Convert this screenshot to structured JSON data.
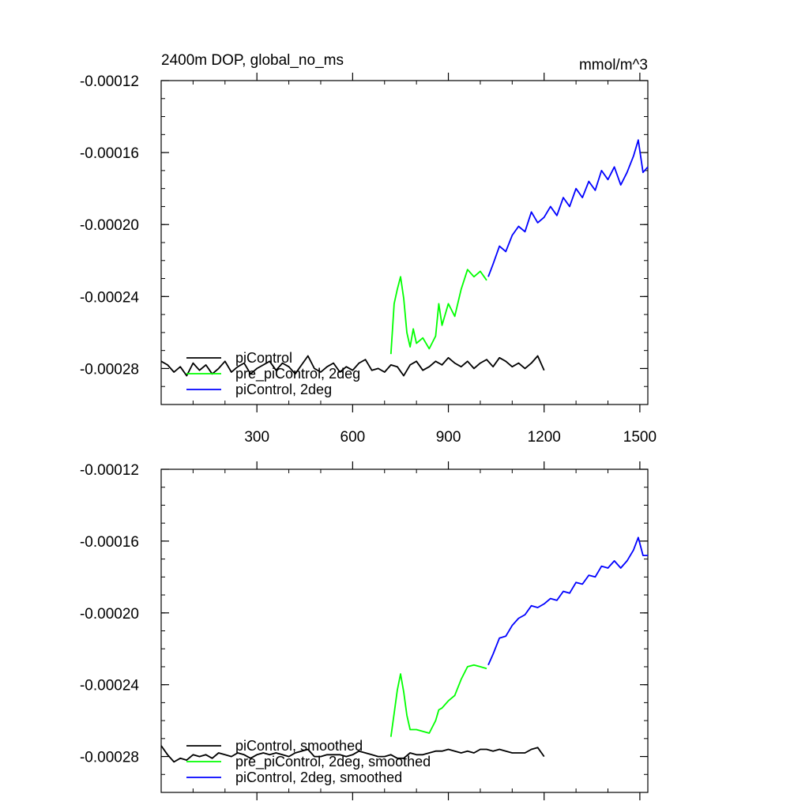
{
  "figure": {
    "title_left": "2400m DOP, global_no_ms",
    "title_right": "mmol/m^3"
  },
  "chart_data": [
    {
      "type": "line",
      "title": "2400m DOP, global_no_ms",
      "units": "mmol/m^3",
      "xlim": [
        0,
        1525
      ],
      "ylim": [
        -0.0003,
        -0.00012
      ],
      "xticks": [
        300,
        600,
        900,
        1200,
        1500
      ],
      "xtick_labels": [
        "300",
        "600",
        "900",
        "1200",
        "1500"
      ],
      "yticks": [
        -0.00028,
        -0.00024,
        -0.0002,
        -0.00016,
        -0.00012
      ],
      "ytick_labels": [
        "-0.00028",
        "-0.00024",
        "-0.00020",
        "-0.00016",
        "-0.00012"
      ],
      "grid": false,
      "legend_position": "lower-left",
      "series": [
        {
          "name": "piControl",
          "color": "#000000",
          "points": [
            [
              0,
              -0.000276
            ],
            [
              20,
              -0.000278
            ],
            [
              40,
              -0.000282
            ],
            [
              60,
              -0.000279
            ],
            [
              80,
              -0.000284
            ],
            [
              100,
              -0.000277
            ],
            [
              120,
              -0.000281
            ],
            [
              140,
              -0.000278
            ],
            [
              160,
              -0.000283
            ],
            [
              180,
              -0.00028
            ],
            [
              200,
              -0.000276
            ],
            [
              220,
              -0.000282
            ],
            [
              240,
              -0.000279
            ],
            [
              260,
              -0.000277
            ],
            [
              280,
              -0.000283
            ],
            [
              300,
              -0.00028
            ],
            [
              320,
              -0.000278
            ],
            [
              340,
              -0.000276
            ],
            [
              360,
              -0.000281
            ],
            [
              380,
              -0.000277
            ],
            [
              400,
              -0.000279
            ],
            [
              420,
              -0.000283
            ],
            [
              440,
              -0.000278
            ],
            [
              460,
              -0.000273
            ],
            [
              480,
              -0.00028
            ],
            [
              500,
              -0.000282
            ],
            [
              520,
              -0.000279
            ],
            [
              540,
              -0.000277
            ],
            [
              560,
              -0.000282
            ],
            [
              580,
              -0.000279
            ],
            [
              600,
              -0.000281
            ],
            [
              620,
              -0.000277
            ],
            [
              640,
              -0.000275
            ],
            [
              660,
              -0.000281
            ],
            [
              680,
              -0.00028
            ],
            [
              700,
              -0.000282
            ],
            [
              720,
              -0.000278
            ],
            [
              740,
              -0.000279
            ],
            [
              760,
              -0.000284
            ],
            [
              780,
              -0.000278
            ],
            [
              800,
              -0.000276
            ],
            [
              820,
              -0.000281
            ],
            [
              840,
              -0.000279
            ],
            [
              860,
              -0.000276
            ],
            [
              880,
              -0.000278
            ],
            [
              900,
              -0.000274
            ],
            [
              920,
              -0.000277
            ],
            [
              940,
              -0.000279
            ],
            [
              960,
              -0.000276
            ],
            [
              980,
              -0.00028
            ],
            [
              1000,
              -0.000277
            ],
            [
              1020,
              -0.000275
            ],
            [
              1040,
              -0.000279
            ],
            [
              1060,
              -0.000274
            ],
            [
              1080,
              -0.000276
            ],
            [
              1100,
              -0.000279
            ],
            [
              1120,
              -0.000277
            ],
            [
              1140,
              -0.00028
            ],
            [
              1160,
              -0.000277
            ],
            [
              1180,
              -0.000273
            ],
            [
              1200,
              -0.000281
            ]
          ]
        },
        {
          "name": "pre_piControl, 2deg",
          "color": "#00ff00",
          "points": [
            [
              720,
              -0.000272
            ],
            [
              730,
              -0.000244
            ],
            [
              740,
              -0.000236
            ],
            [
              750,
              -0.000229
            ],
            [
              760,
              -0.000241
            ],
            [
              770,
              -0.00026
            ],
            [
              780,
              -0.000268
            ],
            [
              790,
              -0.000258
            ],
            [
              800,
              -0.000266
            ],
            [
              820,
              -0.000263
            ],
            [
              840,
              -0.000269
            ],
            [
              860,
              -0.000262
            ],
            [
              870,
              -0.000244
            ],
            [
              880,
              -0.000256
            ],
            [
              900,
              -0.000244
            ],
            [
              920,
              -0.000251
            ],
            [
              940,
              -0.000236
            ],
            [
              960,
              -0.000225
            ],
            [
              980,
              -0.000229
            ],
            [
              1000,
              -0.000226
            ],
            [
              1020,
              -0.000231
            ]
          ]
        },
        {
          "name": "piControl, 2deg",
          "color": "#0000ff",
          "points": [
            [
              1025,
              -0.000229
            ],
            [
              1040,
              -0.000222
            ],
            [
              1060,
              -0.000212
            ],
            [
              1080,
              -0.000215
            ],
            [
              1100,
              -0.000206
            ],
            [
              1120,
              -0.000201
            ],
            [
              1140,
              -0.000204
            ],
            [
              1160,
              -0.000193
            ],
            [
              1180,
              -0.000199
            ],
            [
              1200,
              -0.000196
            ],
            [
              1220,
              -0.00019
            ],
            [
              1240,
              -0.000195
            ],
            [
              1260,
              -0.000185
            ],
            [
              1280,
              -0.00019
            ],
            [
              1300,
              -0.00018
            ],
            [
              1320,
              -0.000185
            ],
            [
              1340,
              -0.000176
            ],
            [
              1360,
              -0.000181
            ],
            [
              1380,
              -0.00017
            ],
            [
              1400,
              -0.000175
            ],
            [
              1420,
              -0.000168
            ],
            [
              1440,
              -0.000178
            ],
            [
              1460,
              -0.000171
            ],
            [
              1480,
              -0.000162
            ],
            [
              1495,
              -0.000153
            ],
            [
              1510,
              -0.000171
            ],
            [
              1525,
              -0.000168
            ]
          ]
        }
      ]
    },
    {
      "type": "line",
      "xlim": [
        0,
        1525
      ],
      "ylim": [
        -0.0003,
        -0.00012
      ],
      "xticks": [
        300,
        600,
        900,
        1200,
        1500
      ],
      "yticks": [
        -0.00028,
        -0.00024,
        -0.0002,
        -0.00016,
        -0.00012
      ],
      "ytick_labels": [
        "-0.00028",
        "-0.00024",
        "-0.00020",
        "-0.00016",
        "-0.00012"
      ],
      "grid": false,
      "legend_position": "lower-left",
      "series": [
        {
          "name": "piControl, smoothed",
          "color": "#000000",
          "points": [
            [
              0,
              -0.000274
            ],
            [
              20,
              -0.000279
            ],
            [
              40,
              -0.000283
            ],
            [
              60,
              -0.000281
            ],
            [
              80,
              -0.000282
            ],
            [
              100,
              -0.000279
            ],
            [
              120,
              -0.00028
            ],
            [
              140,
              -0.000279
            ],
            [
              160,
              -0.000281
            ],
            [
              180,
              -0.000278
            ],
            [
              200,
              -0.000279
            ],
            [
              220,
              -0.00028
            ],
            [
              240,
              -0.000278
            ],
            [
              260,
              -0.000279
            ],
            [
              280,
              -0.000281
            ],
            [
              300,
              -0.000279
            ],
            [
              320,
              -0.000278
            ],
            [
              340,
              -0.000279
            ],
            [
              360,
              -0.000278
            ],
            [
              380,
              -0.000279
            ],
            [
              400,
              -0.00028
            ],
            [
              420,
              -0.000278
            ],
            [
              440,
              -0.000277
            ],
            [
              460,
              -0.000276
            ],
            [
              480,
              -0.00028
            ],
            [
              500,
              -0.00028
            ],
            [
              520,
              -0.000279
            ],
            [
              540,
              -0.000279
            ],
            [
              560,
              -0.000279
            ],
            [
              580,
              -0.00028
            ],
            [
              600,
              -0.000279
            ],
            [
              620,
              -0.000277
            ],
            [
              640,
              -0.000278
            ],
            [
              660,
              -0.000279
            ],
            [
              680,
              -0.00028
            ],
            [
              700,
              -0.00028
            ],
            [
              720,
              -0.000279
            ],
            [
              740,
              -0.000281
            ],
            [
              760,
              -0.000281
            ],
            [
              780,
              -0.000278
            ],
            [
              800,
              -0.000279
            ],
            [
              820,
              -0.000279
            ],
            [
              840,
              -0.000278
            ],
            [
              860,
              -0.000277
            ],
            [
              880,
              -0.000277
            ],
            [
              900,
              -0.000276
            ],
            [
              920,
              -0.000277
            ],
            [
              940,
              -0.000278
            ],
            [
              960,
              -0.000277
            ],
            [
              980,
              -0.000278
            ],
            [
              1000,
              -0.000276
            ],
            [
              1020,
              -0.000276
            ],
            [
              1040,
              -0.000277
            ],
            [
              1060,
              -0.000276
            ],
            [
              1080,
              -0.000277
            ],
            [
              1100,
              -0.000278
            ],
            [
              1120,
              -0.000278
            ],
            [
              1140,
              -0.000278
            ],
            [
              1160,
              -0.000276
            ],
            [
              1180,
              -0.000275
            ],
            [
              1200,
              -0.00028
            ]
          ]
        },
        {
          "name": "pre_piControl, 2deg, smoothed",
          "color": "#00ff00",
          "points": [
            [
              720,
              -0.000269
            ],
            [
              730,
              -0.000256
            ],
            [
              740,
              -0.000243
            ],
            [
              750,
              -0.000234
            ],
            [
              760,
              -0.000244
            ],
            [
              770,
              -0.000257
            ],
            [
              780,
              -0.000265
            ],
            [
              790,
              -0.000265
            ],
            [
              800,
              -0.000265
            ],
            [
              820,
              -0.000266
            ],
            [
              840,
              -0.000267
            ],
            [
              860,
              -0.00026
            ],
            [
              870,
              -0.000254
            ],
            [
              880,
              -0.000253
            ],
            [
              900,
              -0.000249
            ],
            [
              920,
              -0.000246
            ],
            [
              940,
              -0.000237
            ],
            [
              960,
              -0.00023
            ],
            [
              980,
              -0.000229
            ],
            [
              1000,
              -0.00023
            ],
            [
              1020,
              -0.000231
            ]
          ]
        },
        {
          "name": "piControl, 2deg, smoothed",
          "color": "#0000ff",
          "points": [
            [
              1025,
              -0.000229
            ],
            [
              1040,
              -0.000223
            ],
            [
              1060,
              -0.000214
            ],
            [
              1080,
              -0.000213
            ],
            [
              1100,
              -0.000207
            ],
            [
              1120,
              -0.000203
            ],
            [
              1140,
              -0.000201
            ],
            [
              1160,
              -0.000196
            ],
            [
              1180,
              -0.000197
            ],
            [
              1200,
              -0.000195
            ],
            [
              1220,
              -0.000192
            ],
            [
              1240,
              -0.000193
            ],
            [
              1260,
              -0.000188
            ],
            [
              1280,
              -0.000189
            ],
            [
              1300,
              -0.000183
            ],
            [
              1320,
              -0.000184
            ],
            [
              1340,
              -0.000179
            ],
            [
              1360,
              -0.00018
            ],
            [
              1380,
              -0.000174
            ],
            [
              1400,
              -0.000175
            ],
            [
              1420,
              -0.000171
            ],
            [
              1440,
              -0.000175
            ],
            [
              1460,
              -0.000171
            ],
            [
              1480,
              -0.000165
            ],
            [
              1495,
              -0.000158
            ],
            [
              1510,
              -0.000168
            ],
            [
              1525,
              -0.000168
            ]
          ]
        }
      ]
    }
  ]
}
